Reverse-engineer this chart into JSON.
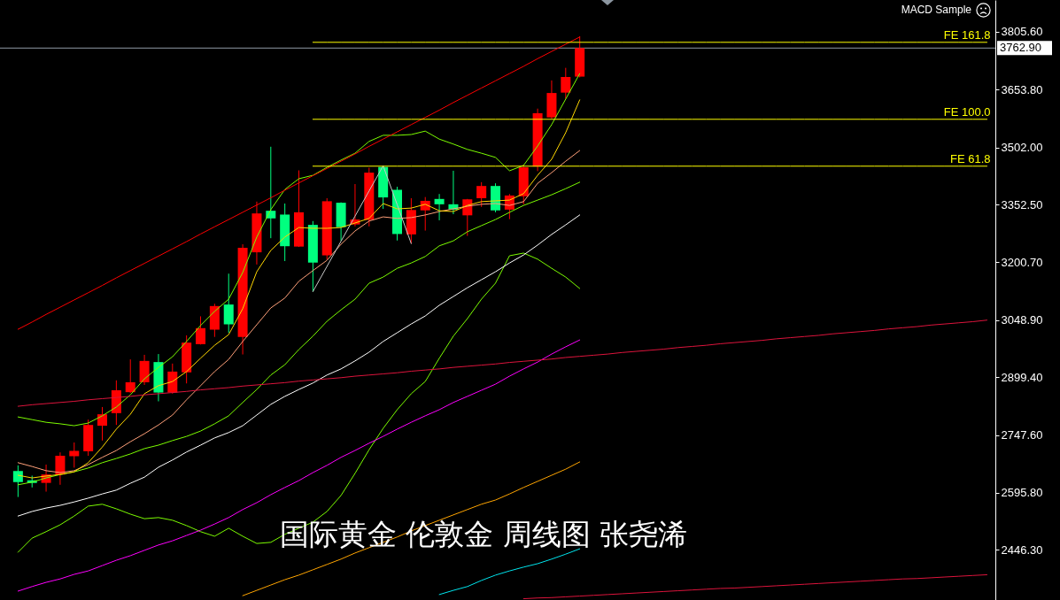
{
  "chart_data": {
    "type": "candlestick",
    "title": "国际黄金 伦敦金 周线图 张尧浠",
    "annotations": [
      "MACD Sample"
    ],
    "categories": [
      null,
      null,
      null,
      null,
      null,
      null,
      null,
      null,
      null,
      null,
      null,
      null,
      null,
      null,
      null,
      null,
      null,
      null,
      null,
      null,
      null,
      null,
      null,
      null,
      null,
      null,
      null,
      null,
      null,
      null,
      null,
      null,
      null,
      null,
      null,
      null,
      null,
      null,
      null,
      null,
      null,
      null,
      null,
      null,
      null,
      null,
      null,
      null,
      null,
      null,
      null,
      null,
      null,
      null,
      null,
      null,
      null,
      null,
      null,
      null,
      null,
      null,
      null,
      null,
      null,
      null,
      null,
      null,
      null,
      null
    ],
    "ohlc": [
      [
        2653,
        2668,
        2585,
        2624
      ],
      [
        2629,
        2641,
        2610,
        2622
      ],
      [
        2622,
        2670,
        2599,
        2644
      ],
      [
        2644,
        2702,
        2617,
        2693
      ],
      [
        2692,
        2728,
        2662,
        2706
      ],
      [
        2705,
        2788,
        2693,
        2774
      ],
      [
        2772,
        2821,
        2733,
        2802
      ],
      [
        2805,
        2891,
        2774,
        2865
      ],
      [
        2860,
        2946,
        2858,
        2886
      ],
      [
        2886,
        2958,
        2879,
        2942
      ],
      [
        2939,
        2960,
        2836,
        2859
      ],
      [
        2859,
        2935,
        2856,
        2914
      ],
      [
        2912,
        3009,
        2883,
        2990
      ],
      [
        2986,
        3059,
        2985,
        3028
      ],
      [
        3024,
        3092,
        3005,
        3086
      ],
      [
        3090,
        3171,
        3016,
        3038
      ],
      [
        3005,
        3248,
        2959,
        3239
      ],
      [
        3227,
        3360,
        3195,
        3329
      ],
      [
        3336,
        3504,
        3264,
        3316
      ],
      [
        3326,
        3355,
        3204,
        3243
      ],
      [
        3242,
        3442,
        3241,
        3332
      ],
      [
        3299,
        3309,
        3124,
        3200
      ],
      [
        3219,
        3369,
        3208,
        3361
      ],
      [
        3357,
        3358,
        3257,
        3293
      ],
      [
        3300,
        3406,
        3295,
        3313
      ],
      [
        3312,
        3449,
        3295,
        3436
      ],
      [
        3451,
        3454,
        3341,
        3371
      ],
      [
        3391,
        3399,
        3258,
        3275
      ],
      [
        3274,
        3369,
        3250,
        3338
      ],
      [
        3337,
        3372,
        3284,
        3362
      ],
      [
        3367,
        3380,
        3311,
        3353
      ],
      [
        3353,
        3441,
        3327,
        3339
      ],
      [
        3324,
        3367,
        3270,
        3366
      ],
      [
        3369,
        3411,
        3346,
        3401
      ],
      [
        3401,
        3408,
        3332,
        3337
      ],
      [
        3339,
        3380,
        3314,
        3376
      ],
      [
        3374,
        3457,
        3353,
        3450
      ],
      [
        3452,
        3604,
        3440,
        3592
      ],
      [
        3581,
        3678,
        3578,
        3645
      ],
      [
        3646,
        3711,
        3630,
        3687
      ],
      [
        3688,
        3794,
        3686,
        3762.9
      ],
      null,
      null,
      null,
      null,
      null,
      null,
      null,
      null,
      null,
      null,
      null,
      null,
      null,
      null,
      null,
      null,
      null,
      null,
      null,
      null,
      null,
      null,
      null,
      null,
      null,
      null,
      null,
      null,
      null
    ],
    "colors": [
      "#00ff7f",
      "#00ff7f",
      "#ff0000",
      "#ff0000",
      "#ff0000",
      "#ff0000",
      "#ff0000",
      "#ff0000",
      "#ff0000",
      "#ff0000",
      "#00ff7f",
      "#ff0000",
      "#ff0000",
      "#ff0000",
      "#ff0000",
      "#00ff7f",
      "#ff0000",
      "#ff0000",
      "#00ff7f",
      "#00ff7f",
      "#ff0000",
      "#00ff7f",
      "#ff0000",
      "#00ff7f",
      "#ff0000",
      "#ff0000",
      "#00ff7f",
      "#00ff7f",
      "#ff0000",
      "#ff0000",
      "#00ff7f",
      "#00ff7f",
      "#ff0000",
      "#ff0000",
      "#00ff7f",
      "#ff0000",
      "#ff0000",
      "#ff0000",
      "#ff0000",
      "#ff0000",
      "#ff0000",
      null,
      null,
      null,
      null,
      null,
      null,
      null,
      null,
      null,
      null,
      null,
      null,
      null,
      null,
      null,
      null,
      null,
      null,
      null,
      null,
      null,
      null,
      null,
      null,
      null,
      null,
      null,
      null,
      null
    ],
    "series": [
      {
        "type": "line",
        "color": "#7cfc00",
        "values": [
          2795,
          2788,
          2781,
          2777,
          2772,
          2779,
          2798,
          2821,
          2853,
          2895,
          2925,
          2953,
          2993,
          3035,
          3072,
          3104,
          3174,
          3267,
          3339,
          3392,
          3420,
          3429,
          3450,
          3469,
          3487,
          3518,
          3534,
          3534,
          3536,
          3545,
          3524,
          3511,
          3497,
          3487,
          3476,
          3441,
          3455,
          3506,
          3562,
          3629,
          3696,
          null,
          null,
          null,
          null,
          null,
          null,
          null,
          null,
          null,
          null,
          null,
          null,
          null,
          null,
          null,
          null,
          null,
          null,
          null,
          null,
          null,
          null,
          null,
          null,
          null,
          null,
          null,
          null,
          null
        ]
      },
      {
        "type": "line",
        "color": "#7cfc00",
        "values": [
          2617,
          2624,
          2635,
          2644,
          2651,
          2661,
          2675,
          2686,
          2698,
          2712,
          2721,
          2733,
          2744,
          2758,
          2777,
          2798,
          2833,
          2867,
          2905,
          2932,
          2972,
          3007,
          3046,
          3076,
          3104,
          3146,
          3162,
          3185,
          3199,
          3216,
          3244,
          3257,
          3281,
          3297,
          3313,
          3332,
          3350,
          3364,
          3378,
          3394,
          3411,
          null,
          null,
          null,
          null,
          null,
          null,
          null,
          null,
          null,
          null,
          null,
          null,
          null,
          null,
          null,
          null,
          null,
          null,
          null,
          null,
          null,
          null,
          null,
          null,
          null,
          null,
          null,
          null,
          null
        ]
      },
      {
        "type": "line",
        "color": "#7cfc00",
        "values": [
          2440,
          2477,
          2494,
          2512,
          2535,
          2561,
          2566,
          2554,
          2540,
          2528,
          2531,
          2524,
          2510,
          2494,
          2482,
          2503,
          2482,
          2463,
          2466,
          2487,
          2503,
          2519,
          2547,
          2589,
          2647,
          2709,
          2765,
          2814,
          2856,
          2888,
          2949,
          3007,
          3053,
          3104,
          3146,
          3218,
          3225,
          3209,
          3185,
          3162,
          3132,
          null,
          null,
          null,
          null,
          null,
          null,
          null,
          null,
          null,
          null,
          null,
          null,
          null,
          null,
          null,
          null,
          null,
          null,
          null,
          null,
          null,
          null,
          null,
          null,
          null,
          null,
          null,
          null,
          null
        ]
      },
      {
        "type": "line",
        "color": "#ffffff",
        "values": [
          2535,
          2547,
          2556,
          2563,
          2572,
          2582,
          2593,
          2603,
          2621,
          2637,
          2663,
          2682,
          2703,
          2721,
          2740,
          2754,
          2772,
          2800,
          2828,
          2849,
          2867,
          2884,
          2905,
          2921,
          2942,
          2965,
          2993,
          3016,
          3039,
          3060,
          3088,
          3111,
          3134,
          3155,
          3176,
          3199,
          3220,
          3246,
          3274,
          3299,
          3325,
          null,
          null,
          null,
          null,
          null,
          null,
          null,
          null,
          null,
          null,
          null,
          null,
          null,
          null,
          null,
          null,
          null,
          null,
          null,
          null,
          null,
          null,
          null,
          null,
          null,
          null,
          null,
          null,
          null
        ]
      },
      {
        "type": "line",
        "color": "#ff00ff",
        "values": [
          2338,
          2350,
          2361,
          2370,
          2382,
          2391,
          2405,
          2419,
          2431,
          2445,
          2459,
          2470,
          2484,
          2498,
          2514,
          2531,
          2552,
          2570,
          2591,
          2610,
          2628,
          2649,
          2668,
          2689,
          2707,
          2726,
          2744,
          2763,
          2781,
          2798,
          2814,
          2833,
          2849,
          2865,
          2881,
          2902,
          2921,
          2939,
          2960,
          2979,
          2997,
          null,
          null,
          null,
          null,
          null,
          null,
          null,
          null,
          null,
          null,
          null,
          null,
          null,
          null,
          null,
          null,
          null,
          null,
          null,
          null,
          null,
          null,
          null,
          null,
          null,
          null,
          null,
          null,
          null
        ]
      },
      {
        "type": "line",
        "color": "#ffa500",
        "values": [
          null,
          null,
          null,
          null,
          null,
          null,
          null,
          null,
          null,
          null,
          null,
          null,
          null,
          null,
          null,
          null,
          2326,
          2340,
          2354,
          2368,
          2380,
          2394,
          2408,
          2422,
          2438,
          2452,
          2466,
          2480,
          2496,
          2510,
          2524,
          2538,
          2552,
          2566,
          2577,
          2593,
          2610,
          2626,
          2642,
          2658,
          2677,
          null,
          null,
          null,
          null,
          null,
          null,
          null,
          null,
          null,
          null,
          null,
          null,
          null,
          null,
          null,
          null,
          null,
          null,
          null,
          null,
          null,
          null,
          null,
          null,
          null,
          null,
          null,
          null,
          null
        ]
      },
      {
        "type": "line",
        "color": "#00e5ee",
        "values": [
          null,
          null,
          null,
          null,
          null,
          null,
          null,
          null,
          null,
          null,
          null,
          null,
          null,
          null,
          null,
          null,
          null,
          null,
          null,
          null,
          null,
          null,
          null,
          null,
          null,
          null,
          null,
          null,
          null,
          null,
          2329,
          2340,
          2350,
          2366,
          2380,
          2391,
          2401,
          2410,
          2422,
          2435,
          2449,
          null,
          null,
          null,
          null,
          null,
          null,
          null,
          null,
          null,
          null,
          null,
          null,
          null,
          null,
          null,
          null,
          null,
          null,
          null,
          null,
          null,
          null,
          null,
          null,
          null,
          null,
          null,
          null,
          null
        ]
      },
      {
        "type": "line",
        "color": "#ffa07a",
        "values": [
          2675,
          2665,
          2654,
          2649,
          2654,
          2670,
          2689,
          2707,
          2730,
          2751,
          2774,
          2800,
          2840,
          2877,
          2914,
          2946,
          2993,
          3037,
          3081,
          3107,
          3151,
          3179,
          3206,
          3248,
          3283,
          3309,
          3320,
          3316,
          3318,
          3325,
          3334,
          3341,
          3348,
          3353,
          3355,
          3350,
          3360,
          3408,
          3436,
          3466,
          3494,
          null,
          null,
          null,
          null,
          null,
          null,
          null,
          null,
          null,
          null,
          null,
          null,
          null,
          null,
          null,
          null,
          null,
          null,
          null,
          null,
          null,
          null,
          null,
          null,
          null,
          null,
          null,
          null,
          null
        ]
      },
      {
        "type": "line",
        "color": "#ffd700",
        "values": [
          2642,
          2635,
          2640,
          2644,
          2651,
          2675,
          2716,
          2763,
          2802,
          2856,
          2877,
          2888,
          2914,
          2949,
          2983,
          3011,
          3079,
          3176,
          3232,
          3267,
          3292,
          3290,
          3290,
          3292,
          3304,
          3316,
          3355,
          3341,
          3343,
          3353,
          3336,
          3334,
          3350,
          3360,
          3362,
          3364,
          3381,
          3429,
          3471,
          3541,
          3627,
          null,
          null,
          null,
          null,
          null,
          null,
          null,
          null,
          null,
          null,
          null,
          null,
          null,
          null,
          null,
          null,
          null,
          null,
          null,
          null,
          null,
          null,
          null,
          null,
          null,
          null,
          null,
          null,
          null
        ]
      },
      {
        "type": "line",
        "color": "#ff0000",
        "values": [
          3025,
          3044,
          3064,
          3083,
          3102,
          3121,
          3140,
          3160,
          3179,
          3198,
          3217,
          3236,
          3255,
          3275,
          3294,
          3313,
          3332,
          3351,
          3370,
          3390,
          3409,
          3428,
          3447,
          3466,
          3485,
          3505,
          3524,
          3543,
          3562,
          3581,
          3600,
          3620,
          3639,
          3658,
          3677,
          3696,
          3715,
          3735,
          3754,
          3773,
          3792,
          null,
          null,
          null,
          null,
          null,
          null,
          null,
          null,
          null,
          null,
          null,
          null,
          null,
          null,
          null,
          null,
          null,
          null,
          null,
          null,
          null,
          null,
          null,
          null,
          null,
          null,
          null,
          null,
          null
        ]
      },
      {
        "type": "line",
        "color": "#dc143c",
        "values": [
          2823,
          2827,
          2830,
          2833,
          2836,
          2840,
          2843,
          2846,
          2849,
          2853,
          2856,
          2859,
          2862,
          2866,
          2869,
          2872,
          2876,
          2879,
          2882,
          2885,
          2889,
          2892,
          2895,
          2898,
          2902,
          2905,
          2908,
          2911,
          2915,
          2918,
          2921,
          2925,
          2928,
          2931,
          2934,
          2938,
          2941,
          2944,
          2947,
          2951,
          2954,
          2957,
          2960,
          2964,
          2967,
          2970,
          2973,
          2977,
          2980,
          2983,
          2987,
          2990,
          2993,
          2996,
          3000,
          3003,
          3006,
          3009,
          3013,
          3016,
          3019,
          3022,
          3026,
          3029,
          3032,
          3036,
          3039,
          3042,
          3045,
          3049
        ]
      },
      {
        "type": "line",
        "color": "#dc143c",
        "values": [
          null,
          null,
          null,
          null,
          null,
          null,
          null,
          null,
          null,
          null,
          null,
          null,
          null,
          null,
          null,
          null,
          null,
          null,
          null,
          null,
          null,
          null,
          null,
          null,
          null,
          null,
          null,
          null,
          null,
          null,
          null,
          null,
          null,
          null,
          null,
          null,
          2318,
          2320,
          2321,
          2323,
          2325,
          2327,
          2329,
          2331,
          2333,
          2335,
          2337,
          2339,
          2341,
          2343,
          2345,
          2346,
          2348,
          2350,
          2352,
          2354,
          2356,
          2358,
          2360,
          2362,
          2364,
          2366,
          2368,
          2370,
          2371,
          2373,
          2375,
          2377,
          2379,
          2381
        ]
      },
      {
        "type": "line",
        "color": "#c8c8c8",
        "values": [
          null,
          null,
          null,
          null,
          null,
          null,
          null,
          null,
          null,
          null,
          null,
          null,
          null,
          null,
          null,
          null,
          null,
          null,
          null,
          null,
          null,
          3124,
          3190,
          3256,
          3322,
          3388,
          3454,
          3352,
          3250,
          null,
          null,
          null,
          null,
          null,
          null,
          null,
          null,
          null,
          null,
          null,
          null,
          null,
          null,
          null,
          null,
          null,
          null,
          null,
          null,
          null,
          null,
          null,
          null,
          null,
          null,
          null,
          null,
          null,
          null,
          null,
          null,
          null,
          null,
          null,
          null,
          null,
          null,
          null,
          null,
          null
        ]
      },
      {
        "type": "line",
        "name": "FE 161.8",
        "color": "#ffff00",
        "values": [
          null,
          null,
          null,
          null,
          null,
          null,
          null,
          null,
          null,
          null,
          null,
          null,
          null,
          null,
          null,
          null,
          null,
          null,
          null,
          null,
          null,
          3778,
          3778,
          3778,
          3778,
          3778,
          3778,
          3778,
          3778,
          3778,
          3778,
          3778,
          3778,
          3778,
          3778,
          3778,
          3778,
          3778,
          3778,
          3778,
          3778,
          3778,
          3778,
          3778,
          3778,
          3778,
          3778,
          3778,
          3778,
          3778,
          3778,
          3778,
          3778,
          3778,
          3778,
          3778,
          3778,
          3778,
          3778,
          3778,
          3778,
          3778,
          3778,
          3778,
          3778,
          3778,
          3778,
          3778,
          3778,
          3778
        ]
      },
      {
        "type": "line",
        "name": "FE 100.0",
        "color": "#ffff00",
        "values": [
          null,
          null,
          null,
          null,
          null,
          null,
          null,
          null,
          null,
          null,
          null,
          null,
          null,
          null,
          null,
          null,
          null,
          null,
          null,
          null,
          null,
          3576,
          3576,
          3576,
          3576,
          3576,
          3576,
          3576,
          3576,
          3576,
          3576,
          3576,
          3576,
          3576,
          3576,
          3576,
          3576,
          3576,
          3576,
          3576,
          3576,
          3576,
          3576,
          3576,
          3576,
          3576,
          3576,
          3576,
          3576,
          3576,
          3576,
          3576,
          3576,
          3576,
          3576,
          3576,
          3576,
          3576,
          3576,
          3576,
          3576,
          3576,
          3576,
          3576,
          3576,
          3576,
          3576,
          3576,
          3576,
          3576
        ]
      },
      {
        "type": "line",
        "name": "FE 61.8",
        "color": "#ffff00",
        "values": [
          null,
          null,
          null,
          null,
          null,
          null,
          null,
          null,
          null,
          null,
          null,
          null,
          null,
          null,
          null,
          null,
          null,
          null,
          null,
          null,
          null,
          3453,
          3453,
          3453,
          3453,
          3453,
          3453,
          3453,
          3453,
          3453,
          3453,
          3453,
          3453,
          3453,
          3453,
          3453,
          3453,
          3453,
          3453,
          3453,
          3453,
          3453,
          3453,
          3453,
          3453,
          3453,
          3453,
          3453,
          3453,
          3453,
          3453,
          3453,
          3453,
          3453,
          3453,
          3453,
          3453,
          3453,
          3453,
          3453,
          3453,
          3453,
          3453,
          3453,
          3453,
          3453,
          3453,
          3453,
          3453,
          3453
        ]
      }
    ],
    "ylim": [
      2314.7,
      3889
    ],
    "yticks": [
      {
        "value": 2446.3,
        "label": "2446.30"
      },
      {
        "value": 2595.8,
        "label": "2595.80"
      },
      {
        "value": 2747.6,
        "label": "2747.60"
      },
      {
        "value": 2899.4,
        "label": "2899.40"
      },
      {
        "value": 3048.9,
        "label": "3048.90"
      },
      {
        "value": 3200.7,
        "label": "3200.70"
      },
      {
        "value": 3352.5,
        "label": "3352.50"
      },
      {
        "value": 3502,
        "label": "3502.00"
      },
      {
        "value": 3653.8,
        "label": "3653.80"
      },
      {
        "value": 3805.6,
        "label": "3805.60"
      }
    ],
    "ref_lines": [
      {
        "axis": "y",
        "value": 3762.9,
        "label": "3762.90",
        "color": "#8f9aa5"
      }
    ]
  }
}
